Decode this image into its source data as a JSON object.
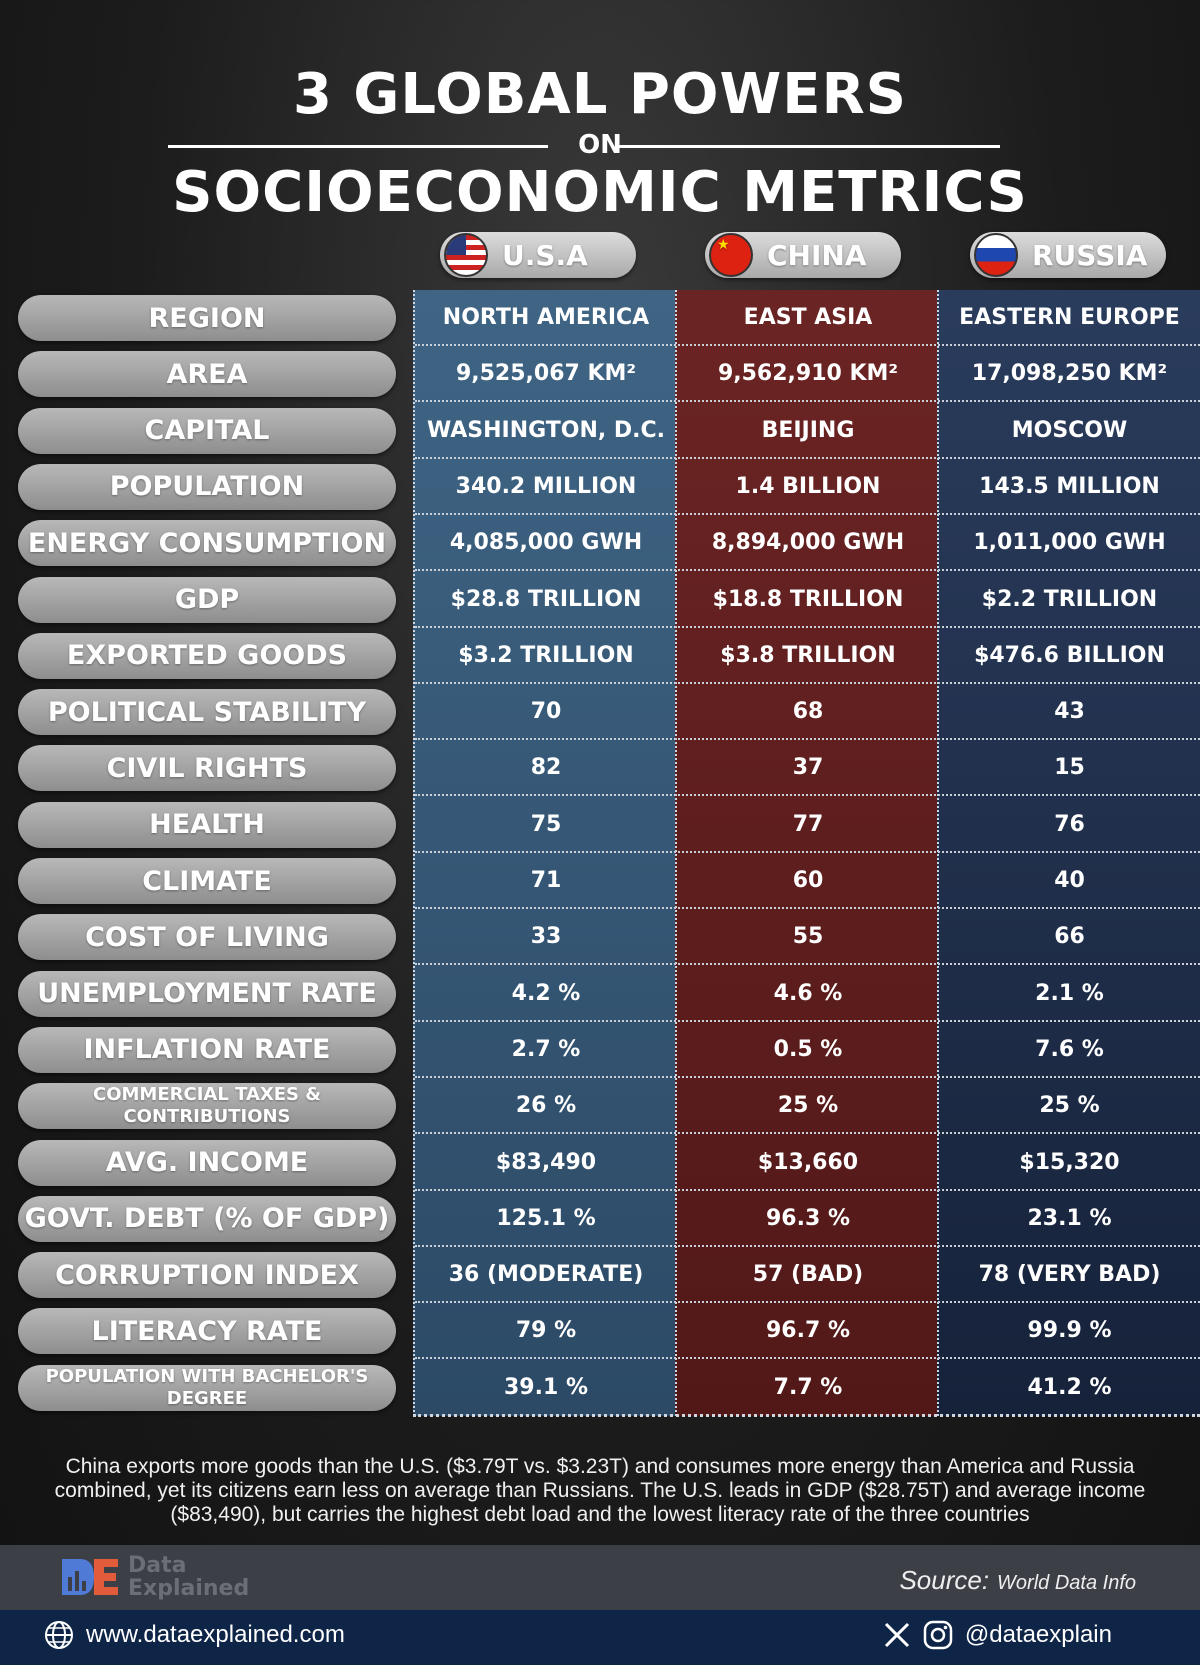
{
  "title": {
    "line1": "3 GLOBAL POWERS",
    "on": "ON",
    "line2": "SOCIOECONOMIC METRICS"
  },
  "countries": [
    {
      "name": "U.S.A",
      "flag_icon": "usa-flag-icon",
      "color": "#3f6484"
    },
    {
      "name": "CHINA",
      "flag_icon": "china-flag-icon",
      "color": "#6b2424"
    },
    {
      "name": "RUSSIA",
      "flag_icon": "russia-flag-icon",
      "color": "#1f2e4a"
    }
  ],
  "rows": [
    {
      "label": "REGION",
      "values": [
        "NORTH AMERICA",
        "EAST ASIA",
        "EASTERN EUROPE"
      ]
    },
    {
      "label": "AREA",
      "values": [
        "9,525,067 KM²",
        "9,562,910 KM²",
        "17,098,250 KM²"
      ]
    },
    {
      "label": "CAPITAL",
      "values": [
        "WASHINGTON, D.C.",
        "BEIJING",
        "MOSCOW"
      ]
    },
    {
      "label": "POPULATION",
      "values": [
        "340.2 MILLION",
        "1.4 BILLION",
        "143.5 MILLION"
      ]
    },
    {
      "label": "ENERGY CONSUMPTION",
      "values": [
        "4,085,000 GWH",
        "8,894,000 GWH",
        "1,011,000 GWH"
      ]
    },
    {
      "label": "GDP",
      "values": [
        "$28.8 TRILLION",
        "$18.8 TRILLION",
        "$2.2 TRILLION"
      ]
    },
    {
      "label": "EXPORTED GOODS",
      "values": [
        "$3.2 TRILLION",
        "$3.8 TRILLION",
        "$476.6 BILLION"
      ]
    },
    {
      "label": "POLITICAL STABILITY",
      "values": [
        "70",
        "68",
        "43"
      ]
    },
    {
      "label": "CIVIL RIGHTS",
      "values": [
        "82",
        "37",
        "15"
      ]
    },
    {
      "label": "HEALTH",
      "values": [
        "75",
        "77",
        "76"
      ]
    },
    {
      "label": "CLIMATE",
      "values": [
        "71",
        "60",
        "40"
      ]
    },
    {
      "label": "COST OF LIVING",
      "values": [
        "33",
        "55",
        "66"
      ]
    },
    {
      "label": "UNEMPLOYMENT RATE",
      "values": [
        "4.2 %",
        "4.6 %",
        "2.1 %"
      ]
    },
    {
      "label": "INFLATION RATE",
      "values": [
        "2.7 %",
        "0.5 %",
        "7.6 %"
      ]
    },
    {
      "label": "COMMERCIAL TAXES & CONTRIBUTIONS",
      "values": [
        "26 %",
        "25 %",
        "25 %"
      ]
    },
    {
      "label": "AVG. INCOME",
      "values": [
        "$83,490",
        "$13,660",
        "$15,320"
      ]
    },
    {
      "label": "GOVT. DEBT (% OF GDP)",
      "values": [
        "125.1 %",
        "96.3 %",
        "23.1 %"
      ]
    },
    {
      "label": "CORRUPTION INDEX",
      "values": [
        "36 (MODERATE)",
        "57 (BAD)",
        "78 (VERY BAD)"
      ]
    },
    {
      "label": "LITERACY RATE",
      "values": [
        "79 %",
        "96.7 %",
        "99.9 %"
      ]
    },
    {
      "label": "POPULATION WITH BACHELOR'S DEGREE",
      "values": [
        "39.1 %",
        "7.7 %",
        "41.2 %"
      ]
    }
  ],
  "footnote": "China exports more goods than the U.S. ($3.79T vs. $3.23T) and consumes more energy than America and Russia combined, yet its citizens earn less on average than Russians.  The U.S. leads in GDP ($28.75T) and average income ($83,490), but carries the highest debt load and the lowest literacy rate of the three countries",
  "brand": {
    "line1": "Data",
    "line2": "Explained",
    "logo_icon": "data-explained-logo-icon"
  },
  "source": {
    "label": "Source:",
    "value": "World Data Info"
  },
  "website": {
    "icon": "globe-icon",
    "text": "www.dataexplained.com"
  },
  "social": {
    "icons": [
      "x-icon",
      "instagram-icon"
    ],
    "handle": "@dataexplain"
  }
}
